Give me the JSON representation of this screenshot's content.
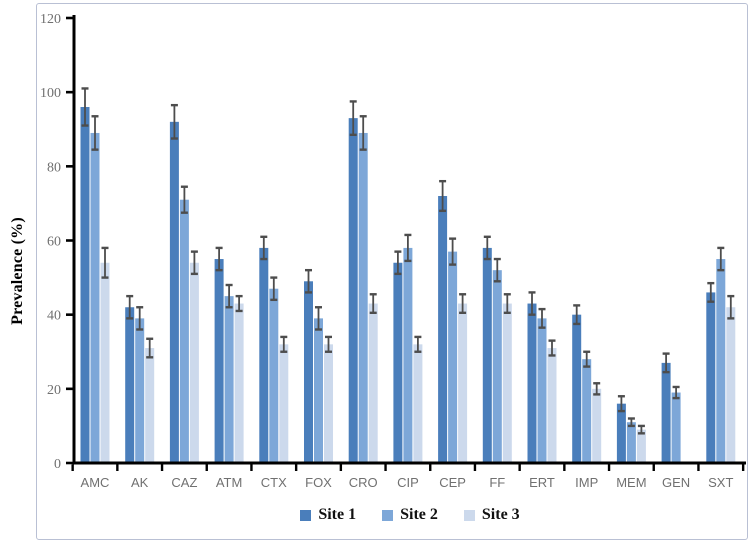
{
  "chart_data": {
    "type": "bar",
    "title": "",
    "xlabel": "",
    "ylabel": "Prevalence (%)",
    "ylim": [
      0,
      120
    ],
    "yticks": [
      0,
      20,
      40,
      60,
      80,
      100,
      120
    ],
    "grid": false,
    "legend_position": "bottom-center",
    "error_bars": true,
    "error_bar_color": "#4d4d4d",
    "axis_color": "#000000",
    "tick_label_color": "#707070",
    "categories": [
      "AMC",
      "AK",
      "CAZ",
      "ATM",
      "CTX",
      "FOX",
      "CRO",
      "CIP",
      "CEP",
      "FF",
      "ERT",
      "IMP",
      "MEM",
      "GEN",
      "SXT"
    ],
    "series": [
      {
        "name": "Site 1",
        "color": "#4a7ebb",
        "values": [
          96,
          42,
          92,
          55,
          58,
          49,
          93,
          54,
          72,
          58,
          43,
          40,
          16,
          27,
          46
        ],
        "errors": [
          5,
          3,
          4.5,
          3,
          3,
          3,
          4.5,
          3,
          4,
          3,
          3,
          2.5,
          2,
          2.5,
          2.5
        ]
      },
      {
        "name": "Site 2",
        "color": "#7da7d8",
        "values": [
          89,
          39,
          71,
          45,
          47,
          39,
          89,
          58,
          57,
          52,
          39,
          28,
          11,
          19,
          55
        ],
        "errors": [
          4.5,
          3,
          3.5,
          3,
          3,
          3,
          4.5,
          3.5,
          3.5,
          3,
          2.5,
          2,
          1,
          1.5,
          3
        ]
      },
      {
        "name": "Site 3",
        "color": "#ccd9ec",
        "values": [
          54,
          31,
          54,
          43,
          32,
          32,
          43,
          32,
          43,
          43,
          31,
          20,
          9,
          null,
          42
        ],
        "errors": [
          4,
          2.5,
          3,
          2,
          2,
          2,
          2.5,
          2,
          2.5,
          2.5,
          2,
          1.5,
          1,
          null,
          3
        ]
      }
    ]
  }
}
